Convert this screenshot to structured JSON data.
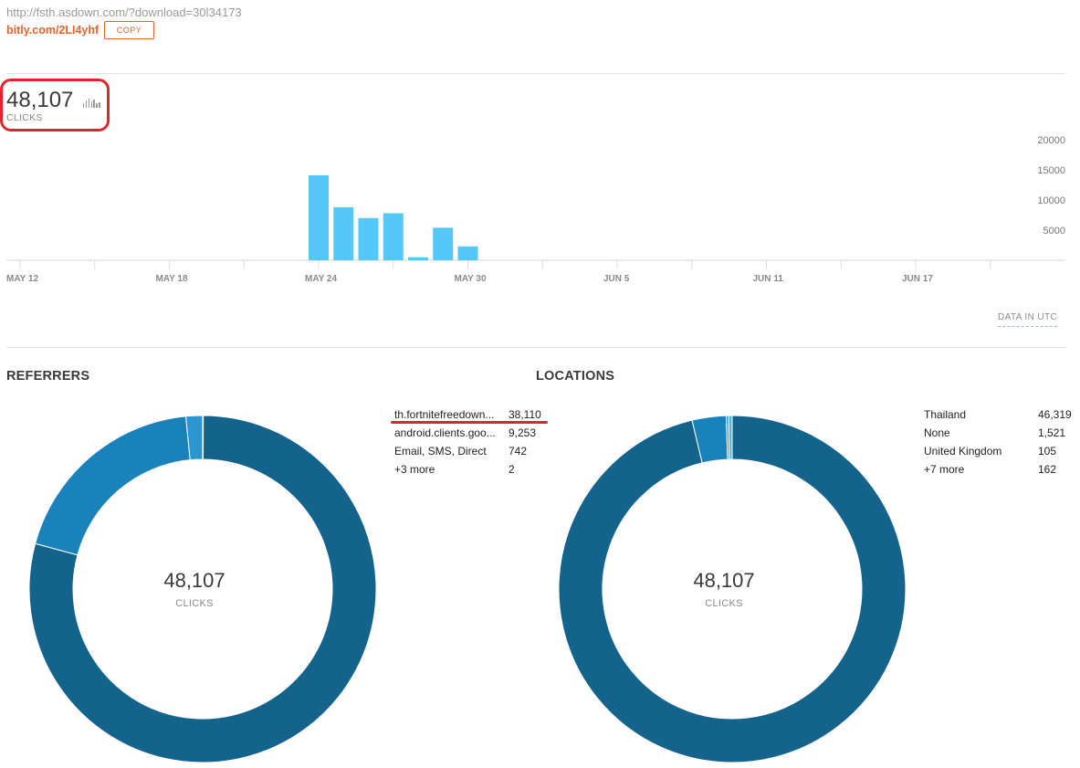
{
  "header": {
    "long_url": "http://fsth.asdown.com/?download=30l34173",
    "short_link": "bitly.com/2LI4yhf",
    "copy_label": "COPY"
  },
  "totals": {
    "clicks": "48,107",
    "clicks_label": "CLICKS"
  },
  "chart_data": {
    "type": "bar",
    "x_ticks": [
      "MAY 12",
      "MAY 18",
      "MAY 24",
      "MAY 30",
      "JUN 5",
      "JUN 11",
      "JUN 17"
    ],
    "y_ticks": [
      5000,
      10000,
      15000,
      20000
    ],
    "y_tick_labels": [
      "5000",
      "10000",
      "15000",
      "20000"
    ],
    "ylim": [
      0,
      20000
    ],
    "x_start": "2018-05-12",
    "x_end": "2018-06-22",
    "x": [
      "2018-05-24",
      "2018-05-25",
      "2018-05-26",
      "2018-05-27",
      "2018-05-28",
      "2018-05-29",
      "2018-05-30"
    ],
    "values": [
      14100,
      8800,
      7000,
      7800,
      500,
      5400,
      2300
    ],
    "grid": false,
    "color": "#55c8fa"
  },
  "footnote": "DATA IN UTC",
  "referrers": {
    "title": "REFERRERS",
    "center_value": "48,107",
    "center_label": "CLICKS",
    "rows": [
      {
        "name": "th.fortnitefreedown...",
        "value": "38,110"
      },
      {
        "name": "android.clients.goo...",
        "value": "9,253"
      },
      {
        "name": "Email, SMS, Direct",
        "value": "742"
      },
      {
        "name": "+3 more",
        "value": "2"
      }
    ],
    "slices": [
      38110,
      9253,
      742,
      2
    ],
    "colors": [
      "#14638d",
      "#1a82bb",
      "#2b95cf",
      "#5fb4e0"
    ]
  },
  "locations": {
    "title": "LOCATIONS",
    "center_value": "48,107",
    "center_label": "CLICKS",
    "rows": [
      {
        "name": "Thailand",
        "value": "46,319"
      },
      {
        "name": "None",
        "value": "1,521"
      },
      {
        "name": "United Kingdom",
        "value": "105"
      },
      {
        "name": "+7 more",
        "value": "162"
      }
    ],
    "slices": [
      46319,
      1521,
      105,
      162
    ],
    "colors": [
      "#14638d",
      "#1a82bb",
      "#2b95cf",
      "#5fb4e0"
    ]
  }
}
